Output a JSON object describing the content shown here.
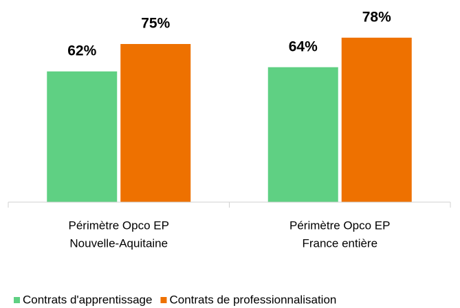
{
  "chart_data": {
    "type": "bar",
    "categories": [
      [
        "Périmètre Opco EP",
        "Nouvelle-Aquitaine"
      ],
      [
        "Périmètre Opco EP",
        "France entière"
      ]
    ],
    "series": [
      {
        "name": "Contrats d'apprentissage",
        "color": "#5fd083",
        "values": [
          62,
          64
        ],
        "value_labels": [
          "62%",
          "64%"
        ]
      },
      {
        "name": "Contrats de professionnalisation",
        "color": "#ee7100",
        "values": [
          75,
          78
        ],
        "value_labels": [
          "75%",
          "78%"
        ]
      }
    ],
    "ylim": [
      0,
      90
    ],
    "legend": "bottom"
  }
}
